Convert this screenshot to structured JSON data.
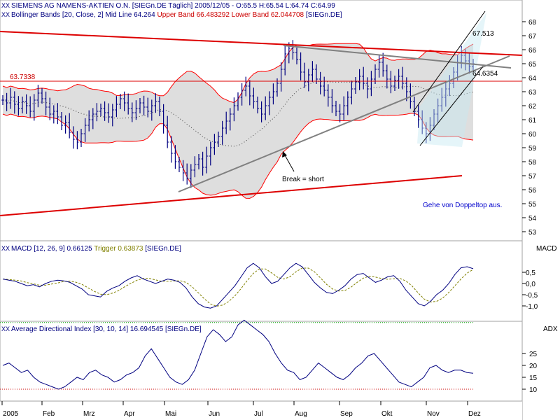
{
  "price_panel": {
    "header_line1": "SIEMENS AG NAMENS-AKTIEN O.N. [SIEGn.DE  Täglich] 2005/12/05 - O:65.5 H:65.54 L:64.74 C:64.99",
    "bb_prefix": "Bollinger Bands [20, Close, 2] Mid Line 64.264 ",
    "bb_upper": "Upper Band 66.483292 ",
    "bb_lower": "Lower Band 62.044708 ",
    "bb_suffix": "[SIEGn.DE]",
    "level_label": "63.7338",
    "target_label": "67.513",
    "channel_label": "64.6354",
    "break_annotation": "Break = short",
    "comment": "Gehe von Doppeltop aus."
  },
  "macd_panel": {
    "title_prefix": "MACD [12, 26, 9] 0.66125 ",
    "trigger_text": "Trigger 0.63873",
    "title_suffix": " [SIEGn.DE]",
    "axis_name": "MACD"
  },
  "adx_panel": {
    "title": "Average Directional Index [30, 10, 14] 16.694545 [SIEGn.DE]",
    "axis_name": "ADX"
  },
  "chart_data": [
    {
      "type": "line",
      "title": "SIEMENS AG NAMENS-AKTIEN O.N.",
      "x_labels": [
        "2005",
        "Feb",
        "Mrz",
        "Apr",
        "Mai",
        "Jun",
        "Jul",
        "Aug",
        "Sep",
        "Okt",
        "Nov",
        "Dez"
      ],
      "y_ticks": [
        53,
        54,
        55,
        56,
        57,
        58,
        59,
        60,
        61,
        62,
        63,
        64,
        65,
        66,
        67,
        68
      ],
      "ylim": [
        52.5,
        68.5
      ],
      "grid": false,
      "series": [
        {
          "name": "SIEGn.DE",
          "values": [
            62.4,
            62.2,
            62.6,
            62.1,
            61.8,
            62.3,
            62.0,
            61.6,
            62.4,
            62.9,
            62.5,
            61.9,
            61.4,
            61.6,
            61.2,
            60.6,
            60.8,
            60.1,
            59.6,
            59.4,
            60.0,
            60.6,
            61.0,
            61.4,
            61.6,
            61.8,
            61.5,
            61.2,
            61.7,
            62.1,
            62.5,
            62.2,
            61.8,
            61.5,
            61.8,
            62.2,
            61.9,
            61.6,
            62.0,
            62.3,
            61.6,
            60.6,
            59.4,
            58.6,
            58.0,
            57.6,
            57.2,
            56.8,
            57.4,
            57.8,
            58.2,
            57.6,
            58.4,
            59.0,
            59.4,
            59.8,
            60.4,
            60.9,
            61.4,
            62.0,
            62.6,
            63.1,
            63.4,
            62.7,
            62.3,
            61.8,
            61.4,
            62.0,
            62.6,
            63.0,
            63.6,
            64.6,
            65.7,
            66.1,
            65.8,
            65.3,
            64.4,
            63.7,
            64.2,
            64.6,
            63.9,
            63.4,
            63.1,
            62.6,
            62.0,
            61.6,
            61.4,
            62.0,
            62.6,
            63.2,
            63.7,
            64.1,
            63.6,
            63.2,
            63.9,
            64.6,
            65.1,
            64.5,
            63.9,
            63.4,
            63.8,
            64.1,
            63.6,
            63.0,
            62.3,
            61.6,
            61.0,
            60.4,
            60.0,
            60.6,
            61.4,
            62.0,
            62.6,
            63.2,
            63.6,
            64.4,
            65.1,
            65.6,
            65.2,
            64.8,
            65.0
          ],
          "color": "#000080"
        },
        {
          "name": "Upper Band 66.483292",
          "color": "#ff0000"
        },
        {
          "name": "Lower Band 62.044708",
          "color": "#ff0000"
        },
        {
          "name": "Mid Line 64.264",
          "color": "#000000"
        }
      ],
      "annotations": [
        "63.7338",
        "67.513",
        "64.6354",
        "Break = short",
        "Gehe von Doppeltop aus."
      ],
      "trendlines": [
        {
          "from": [
            "2005",
            68.2
          ],
          "to": [
            "Dez",
            65.6
          ],
          "color": "#dd0000"
        },
        {
          "from": [
            "2005",
            54.1
          ],
          "to": [
            "Dez",
            57.0
          ],
          "color": "#dd0000"
        },
        {
          "from": [
            "Mai",
            55.9
          ],
          "to": [
            "Dez",
            65.6
          ],
          "color": "#808080"
        },
        {
          "from": [
            "Jul",
            66.3
          ],
          "to": [
            "Dez",
            64.6
          ],
          "color": "#808080"
        }
      ],
      "horizontal_lines": [
        {
          "y": 63.7338,
          "color": "#dd0000"
        }
      ]
    },
    {
      "type": "line",
      "title": "MACD [12, 26, 9]",
      "y_ticks": [
        -1.0,
        -0.5,
        0.0,
        0.5
      ],
      "y_tick_labels": [
        "-1,0",
        "-0,5",
        "0,0",
        "0,5"
      ],
      "ylim": [
        -1.35,
        1.05
      ],
      "series": [
        {
          "name": "MACD",
          "color": "#000080",
          "values": [
            0.2,
            0.15,
            0.1,
            0.0,
            -0.1,
            -0.05,
            -0.15,
            0.0,
            0.1,
            0.15,
            0.12,
            0.05,
            -0.1,
            -0.25,
            -0.5,
            -0.55,
            -0.6,
            -0.35,
            -0.2,
            -0.1,
            0.1,
            0.25,
            0.35,
            0.2,
            0.1,
            0.0,
            0.1,
            0.2,
            0.15,
            0.05,
            -0.2,
            -0.6,
            -0.9,
            -1.05,
            -1.1,
            -1.0,
            -0.7,
            -0.4,
            -0.1,
            0.3,
            0.7,
            0.9,
            0.7,
            0.3,
            0.0,
            0.1,
            0.4,
            0.7,
            0.9,
            0.75,
            0.4,
            0.05,
            -0.2,
            -0.4,
            -0.45,
            -0.3,
            -0.1,
            0.2,
            0.4,
            0.45,
            0.25,
            0.05,
            0.15,
            0.3,
            0.35,
            0.1,
            -0.3,
            -0.6,
            -0.9,
            -1.0,
            -0.8,
            -0.5,
            -0.3,
            0.0,
            0.4,
            0.7,
            0.75,
            0.66
          ]
        },
        {
          "name": "Trigger",
          "color": "#808000"
        }
      ]
    },
    {
      "type": "line",
      "title": "Average Directional Index [30, 10, 14]",
      "y_ticks": [
        10,
        15,
        20,
        25
      ],
      "ylim": [
        6.5,
        42
      ],
      "reference_lines": [
        10,
        38
      ],
      "series": [
        {
          "name": "ADX",
          "color": "#000080",
          "values": [
            20,
            21,
            19,
            17,
            18,
            15,
            13,
            12,
            11,
            10,
            11,
            13,
            15,
            14,
            17,
            18,
            16,
            15,
            13,
            14,
            16,
            17,
            19,
            24,
            27,
            23,
            19,
            15,
            13,
            12,
            14,
            18,
            25,
            32,
            35,
            33,
            30,
            32,
            37,
            39,
            37,
            35,
            33,
            30,
            25,
            21,
            18,
            17,
            14,
            15,
            18,
            21,
            19,
            17,
            15,
            14,
            16,
            19,
            21,
            24,
            25,
            22,
            19,
            16,
            13,
            12,
            11,
            13,
            15,
            19,
            20,
            18,
            17,
            18,
            18,
            17,
            16.7
          ]
        }
      ]
    }
  ]
}
